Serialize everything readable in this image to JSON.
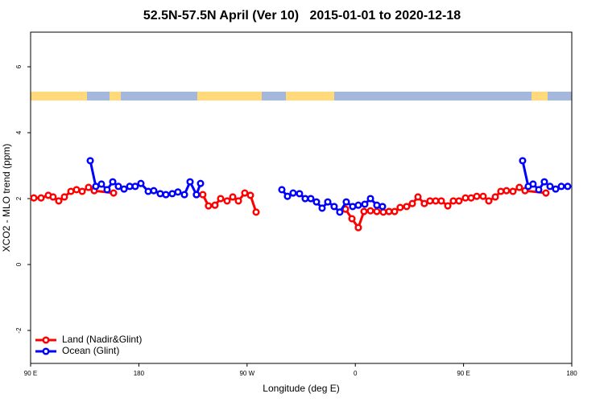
{
  "chart_data": {
    "type": "line",
    "title": "52.5N-57.5N April (Ver 10)   2015-01-01 to 2020-12-18",
    "x_label": "Longitude (deg E)",
    "y_label": "XCO2 - MLO trend (ppm)",
    "xlim": [
      90,
      540
    ],
    "ylim": [
      -3,
      7.05
    ],
    "xticks": [
      {
        "value": 90,
        "label": "90 E"
      },
      180,
      {
        "value": 270,
        "label": "90 W"
      },
      {
        "value": 360,
        "label": "0"
      },
      {
        "value": 450,
        "label": "90 E"
      },
      {
        "value": 540,
        "label": "180"
      }
    ],
    "yticks": [
      -2,
      0,
      2,
      4,
      6
    ],
    "legend": "bottomleft",
    "series": [
      {
        "name": "Land (Nadir&Glint)",
        "color": "#ff0000",
        "x": [
          92.7,
          98.7,
          104.7,
          108.7,
          113.4,
          118.1,
          123.5,
          128.2,
          132.9,
          138.2,
          142.9,
          159.0,
          null,
          227.9,
          233.2,
          237.9,
          243.3,
          248.0,
          253.4,
          258.1,
          262.8,
          268.1,
          272.8,
          277.5,
          null,
          351.8,
          357.2,
          362.5,
          367.2,
          372.6,
          377.9,
          383.3,
          388.0,
          392.7,
          397.3,
          402.7,
          407.4,
          412.1,
          417.4,
          422.1,
          426.8,
          431.5,
          436.9,
          441.5,
          446.2,
          451.6,
          456.3,
          461.0,
          466.3,
          471.0,
          476.4,
          481.0,
          485.7,
          491.1,
          496.4,
          501.1,
          518.5
        ],
        "values": [
          2.02,
          2.02,
          2.1,
          2.05,
          1.93,
          2.05,
          2.22,
          2.27,
          2.22,
          2.34,
          2.24,
          2.17,
          null,
          2.12,
          2.12,
          1.78,
          1.8,
          2.0,
          1.93,
          2.05,
          1.93,
          2.17,
          2.1,
          1.59,
          null,
          1.68,
          1.39,
          1.12,
          1.61,
          1.63,
          1.61,
          1.59,
          1.61,
          1.61,
          1.73,
          1.76,
          1.85,
          2.05,
          1.85,
          1.93,
          1.93,
          1.93,
          1.78,
          1.93,
          1.93,
          2.02,
          2.02,
          2.07,
          2.07,
          1.93,
          2.05,
          2.22,
          2.24,
          2.22,
          2.34,
          2.24,
          2.17
        ]
      },
      {
        "name": "Ocean (Glint)",
        "color": "#0000ff",
        "x": [
          139.6,
          144.2,
          148.9,
          153.6,
          158.3,
          163.0,
          167.7,
          172.4,
          177.0,
          181.7,
          187.8,
          192.4,
          197.8,
          202.5,
          207.8,
          212.5,
          217.9,
          222.6,
          227.9,
          231.3,
          null,
          298.9,
          303.6,
          308.3,
          313.6,
          318.3,
          323.0,
          327.7,
          332.4,
          337.1,
          342.4,
          347.1,
          352.5,
          357.8,
          362.5,
          367.9,
          372.6,
          377.9,
          382.6,
          null,
          499.1,
          503.8,
          507.8,
          512.5,
          517.2,
          521.9,
          526.6,
          531.3,
          536.6
        ],
        "values": [
          3.15,
          2.37,
          2.44,
          2.27,
          2.51,
          2.37,
          2.29,
          2.37,
          2.37,
          2.46,
          2.22,
          2.24,
          2.15,
          2.12,
          2.15,
          2.2,
          2.12,
          2.51,
          2.12,
          2.46,
          null,
          2.27,
          2.07,
          2.17,
          2.15,
          2.0,
          2.0,
          1.9,
          1.71,
          1.9,
          1.76,
          1.59,
          1.9,
          1.76,
          1.8,
          1.83,
          2.0,
          1.8,
          1.76,
          null,
          3.15,
          2.37,
          2.44,
          2.27,
          2.51,
          2.37,
          2.29,
          2.37,
          2.37
        ]
      }
    ]
  }
}
